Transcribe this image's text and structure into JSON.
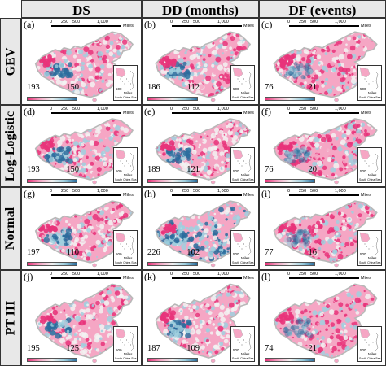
{
  "columns": [
    {
      "label": "DS"
    },
    {
      "label": "DD (months)"
    },
    {
      "label": "DF (events)"
    }
  ],
  "rows": [
    {
      "label": "GEV"
    },
    {
      "label": "Log-Logistic"
    },
    {
      "label": "Normal"
    },
    {
      "label": "PT III"
    }
  ],
  "panels": [
    {
      "letter": "(a)",
      "max": "193",
      "min": "150",
      "pattern": "ds"
    },
    {
      "letter": "(b)",
      "max": "186",
      "min": "112",
      "pattern": "ds"
    },
    {
      "letter": "(c)",
      "max": "76",
      "min": "21",
      "pattern": "df"
    },
    {
      "letter": "(d)",
      "max": "193",
      "min": "150",
      "pattern": "ds"
    },
    {
      "letter": "(e)",
      "max": "189",
      "min": "121",
      "pattern": "ds"
    },
    {
      "letter": "(f)",
      "max": "76",
      "min": "20",
      "pattern": "df"
    },
    {
      "letter": "(g)",
      "max": "197",
      "min": "110",
      "pattern": "ds"
    },
    {
      "letter": "(h)",
      "max": "226",
      "min": "102",
      "pattern": "dd"
    },
    {
      "letter": "(i)",
      "max": "77",
      "min": "16",
      "pattern": "df"
    },
    {
      "letter": "(j)",
      "max": "195",
      "min": "125",
      "pattern": "ds"
    },
    {
      "letter": "(k)",
      "max": "187",
      "min": "109",
      "pattern": "ds"
    },
    {
      "letter": "(l)",
      "max": "74",
      "min": "21",
      "pattern": "df"
    }
  ],
  "scale": {
    "t0": "0",
    "t1": "250",
    "t2": "500",
    "t3": "1,000",
    "unit": "Miles"
  },
  "inset": {
    "n": "500",
    "unit": "Miles",
    "caption": "South China Sea"
  },
  "colors": {
    "high": "#e8337a",
    "midhigh": "#f5a6c4",
    "neutral": "#f2f2f2",
    "midlow": "#9fd0df",
    "low": "#2a6c9c",
    "border": "#b8b8b8"
  }
}
